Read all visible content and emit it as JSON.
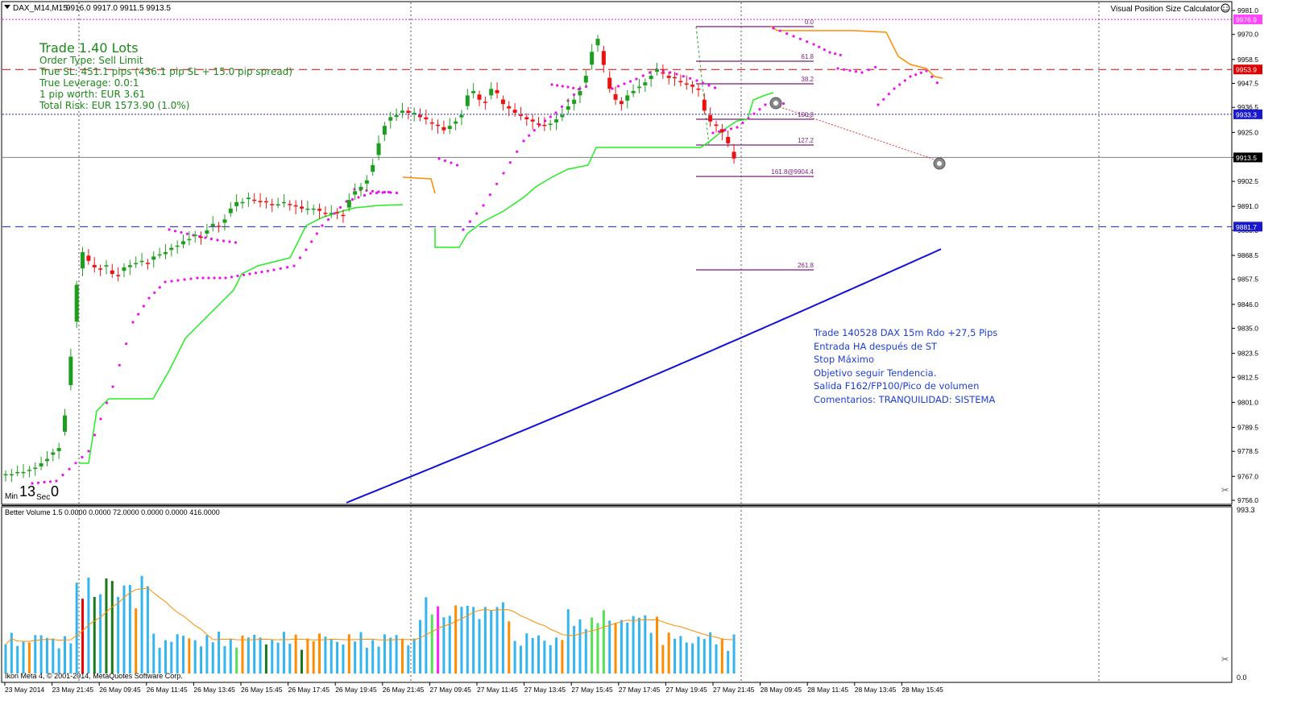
{
  "chart_header": {
    "symbol_label": "DAX_M14,M15",
    "ohlc_label": "9916.0 9917.0 9911.5 9913.5",
    "calculator_label": "Visual Position Size Calculator",
    "calculator_icon": "smiley-icon"
  },
  "trade_info": {
    "title": "Trade 1.40 Lots",
    "order_type": "Order Type:  Sell Limit",
    "true_sl": "True SL:  451.1 pips (436.1 pip SL + 15.0 pip spread)",
    "true_leverage": "True Leverage:  0.0:1",
    "pip_worth": "1 pip worth:  EUR 3.61",
    "total_risk": "Total Risk:  EUR 1573.90 (1.0%)"
  },
  "timer": {
    "min_label": "Min",
    "min_value": "13",
    "sec_label": "Sec",
    "sec_value": "0"
  },
  "price_labels": {
    "line_top": "9976.9",
    "line_red": "9953.9",
    "line_blue_dotted": "9933.3",
    "current": "9913.5",
    "line_blue_dashed": "9881.7"
  },
  "fibonacci_levels": [
    "0.0",
    "61.8",
    "38.2",
    "100.0",
    "127.2",
    "161.8@9904.4",
    "261.8"
  ],
  "annotation": [
    "Trade 140528 DAX 15m Rdo +27,5 Pips",
    "Entrada HA después de ST",
    "Stop Máximo",
    "Objetivo seguir Tendencia.",
    "Salida F162/FP100/Pico de volumen",
    "Comentarios: TRANQUILIDAD: SISTEMA"
  ],
  "volume_header": "Better Volume 1.5 0.0000 0.0000 72.0000 0.0000 0.0000 416.0000",
  "copyright": "Ikon Meta 4, © 2001-2014, MetaQuotes Software Corp.",
  "volume_axis": {
    "top": "993.3",
    "bottom": "0.0"
  },
  "colors": {
    "bull_candle": "#1e9e1e",
    "bear_candle": "#ee1111",
    "supertrend_up": "#22ee22",
    "supertrend_down": "#ff8c00",
    "parabolic_sar": "#ee11ee",
    "moving_average": "#1111dd",
    "volume_normal": "#33b5f0",
    "volume_climax_up": "#ee0000",
    "volume_churn": "#1a7a1a",
    "volume_high": "#55e055",
    "volume_climax": "#ff22ff",
    "volume_low": "#ff8c00"
  },
  "chart_data": [
    {
      "type": "candlestick",
      "title": "DAX_M14,M15",
      "ylim": [
        9756.0,
        9983.0
      ],
      "y_ticks": [
        "9981.0",
        "9970.0",
        "9958.5",
        "9947.5",
        "9936.5",
        "9925.0",
        "9913.5",
        "9902.5",
        "9891.0",
        "9880.0",
        "9868.5",
        "9857.5",
        "9846.0",
        "9835.0",
        "9823.5",
        "9812.5",
        "9801.0",
        "9789.5",
        "9778.5",
        "9767.0",
        "9756.0"
      ],
      "x_ticks": [
        "23 May 2014",
        "23 May 21:45",
        "26 May 09:45",
        "26 May 11:45",
        "26 May 13:45",
        "26 May 15:45",
        "26 May 17:45",
        "26 May 19:45",
        "26 May 21:45",
        "27 May 09:45",
        "27 May 11:45",
        "27 May 13:45",
        "27 May 15:45",
        "27 May 17:45",
        "27 May 19:45",
        "27 May 21:45",
        "28 May 09:45",
        "28 May 11:45",
        "28 May 13:45",
        "28 May 15:45"
      ],
      "horizontal_lines": [
        9976.9,
        9953.9,
        9933.3,
        9913.5,
        9881.7
      ],
      "close_approx": [
        9768,
        9768,
        9769,
        9769,
        9770,
        9771,
        9773,
        9775,
        9778,
        9780,
        9795,
        9822,
        9855,
        9870,
        9866,
        9863,
        9862,
        9864,
        9860,
        9859,
        9863,
        9864,
        9865,
        9866,
        9865,
        9868,
        9869,
        9870,
        9872,
        9873,
        9875,
        9876,
        9878,
        9877,
        9880,
        9883,
        9882,
        9885,
        9890,
        9893,
        9893,
        9895,
        9894,
        9893,
        9893,
        9892,
        9892,
        9893,
        9892,
        9891,
        9890,
        9890,
        9890,
        9889,
        9888,
        9888,
        9888,
        9887,
        9894,
        9898,
        9900,
        9903,
        9910,
        9920,
        9928,
        9932,
        9933,
        9935,
        9934,
        9934,
        9932,
        9931,
        9929,
        9928,
        9926,
        9928,
        9930,
        9933,
        9942,
        9944,
        9940,
        9939,
        9945,
        9943,
        9938,
        9936,
        9934,
        9933,
        9931,
        9930,
        9929,
        9928,
        9929,
        9931,
        9933,
        9937,
        9940,
        9944,
        9951,
        9962,
        9968,
        9956,
        9945,
        9940,
        9938,
        9942,
        9944,
        9946,
        9948,
        9951,
        9954,
        9952,
        9950,
        9950,
        9948,
        9947,
        9946,
        9945,
        9935,
        9930,
        9928,
        9925,
        9920,
        9913
      ]
    },
    {
      "type": "bar",
      "title": "Better Volume 1.5",
      "ylim": [
        0.0,
        993.3
      ],
      "note": "volume histogram with moving average overlay"
    }
  ]
}
